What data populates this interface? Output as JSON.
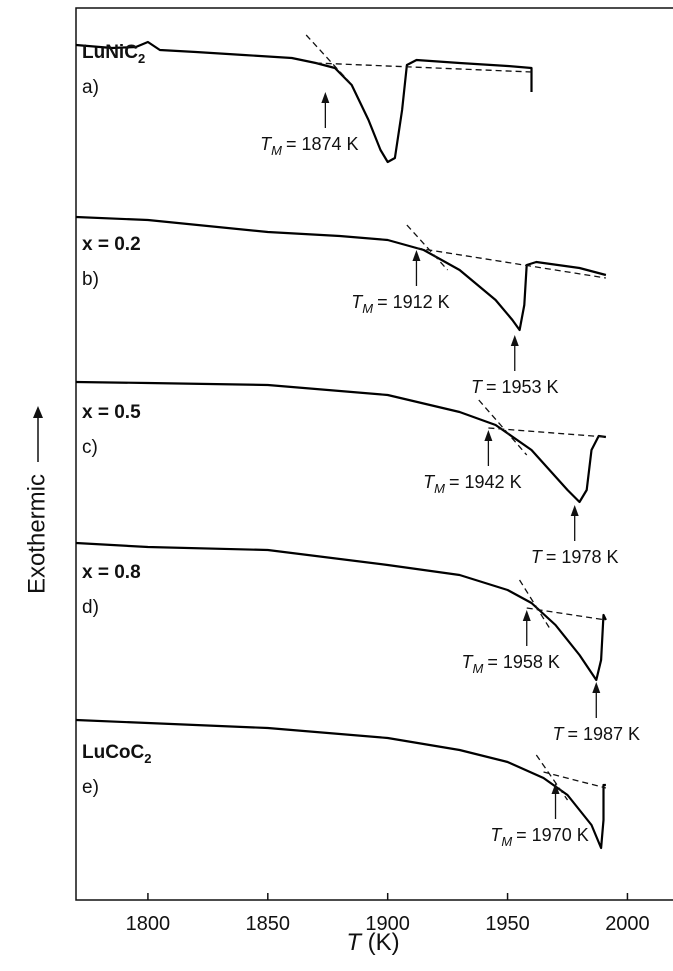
{
  "chart_data": {
    "type": "line",
    "xlabel": {
      "symbol": "T",
      "unit": "(K)"
    },
    "ylabel": "Exothermic",
    "xlim": [
      1770,
      2019
    ],
    "ylim": [
      0,
      892
    ],
    "xticks": [
      1800,
      1850,
      1900,
      1950,
      2000
    ],
    "color": "#000000",
    "series": [
      {
        "name": "LuNiC",
        "sub": "2",
        "letter": "a)",
        "x": [
          1770,
          1785,
          1795,
          1800,
          1805,
          1820,
          1840,
          1860,
          1870,
          1878,
          1885,
          1892,
          1897,
          1900,
          1903,
          1906,
          1908,
          1912,
          1930,
          1950,
          1960,
          1960
        ],
        "values": [
          855,
          852,
          853,
          858,
          850,
          848,
          845,
          842,
          837,
          832,
          815,
          780,
          750,
          738,
          742,
          790,
          835,
          840,
          837,
          834,
          832,
          808
        ],
        "baseline": [
          1870,
          837,
          1960,
          828
        ],
        "tangent": [
          1866,
          865,
          1884,
          818
        ],
        "annotations": [
          {
            "symbol": "T",
            "sub": "M",
            "text": "= 1874 K",
            "x": 1874,
            "y": 808
          }
        ]
      },
      {
        "name": "x = 0.2",
        "letter": "b)",
        "x": [
          1770,
          1800,
          1850,
          1880,
          1900,
          1915,
          1930,
          1945,
          1952,
          1955,
          1957,
          1958,
          1962,
          1980,
          1991
        ],
        "values": [
          683,
          680,
          668,
          664,
          660,
          650,
          630,
          600,
          580,
          570,
          595,
          635,
          638,
          632,
          625
        ],
        "baseline": [
          1912,
          652,
          1991,
          622
        ],
        "tangent": [
          1908,
          675,
          1925,
          630
        ],
        "annotations": [
          {
            "symbol": "T",
            "sub": "M",
            "text": "= 1912 K",
            "x": 1912,
            "y": 650
          },
          {
            "symbol": "T",
            "text": "= 1953 K",
            "x": 1953,
            "y": 565
          }
        ]
      },
      {
        "name": "x = 0.5",
        "letter": "c)",
        "x": [
          1770,
          1800,
          1850,
          1900,
          1930,
          1945,
          1960,
          1975,
          1980,
          1983,
          1985,
          1988,
          1991
        ],
        "values": [
          518,
          517,
          515,
          505,
          488,
          475,
          450,
          410,
          398,
          410,
          450,
          464,
          463
        ],
        "baseline": [
          1942,
          472,
          1991,
          463
        ],
        "tangent": [
          1938,
          500,
          1958,
          445
        ],
        "annotations": [
          {
            "symbol": "T",
            "sub": "M",
            "text": "= 1942 K",
            "x": 1942,
            "y": 470
          },
          {
            "symbol": "T",
            "text": "= 1978 K",
            "x": 1978,
            "y": 395
          }
        ]
      },
      {
        "name": "x = 0.8",
        "letter": "d)",
        "x": [
          1770,
          1800,
          1850,
          1900,
          1930,
          1950,
          1960,
          1970,
          1980,
          1987,
          1989,
          1990,
          1991
        ],
        "values": [
          357,
          353,
          350,
          335,
          325,
          310,
          297,
          275,
          245,
          220,
          240,
          285,
          280
        ],
        "baseline": [
          1958,
          292,
          1991,
          280
        ],
        "tangent": [
          1955,
          320,
          1968,
          270
        ],
        "annotations": [
          {
            "symbol": "T",
            "sub": "M",
            "text": "= 1958 K",
            "x": 1958,
            "y": 290
          },
          {
            "symbol": "T",
            "text": "= 1987 K",
            "x": 1987,
            "y": 218
          }
        ]
      },
      {
        "name": "LuCoC",
        "sub": "2",
        "letter": "e)",
        "x": [
          1770,
          1800,
          1850,
          1900,
          1930,
          1950,
          1965,
          1975,
          1985,
          1989,
          1990,
          1990,
          1991
        ],
        "values": [
          180,
          177,
          172,
          162,
          150,
          138,
          122,
          105,
          75,
          52,
          80,
          115,
          115
        ],
        "baseline": [
          1965,
          128,
          1991,
          112
        ],
        "tangent": [
          1962,
          145,
          1975,
          100
        ],
        "annotations": [
          {
            "symbol": "T",
            "sub": "M",
            "text": "= 1970 K",
            "x": 1970,
            "y": 117
          }
        ]
      }
    ]
  }
}
